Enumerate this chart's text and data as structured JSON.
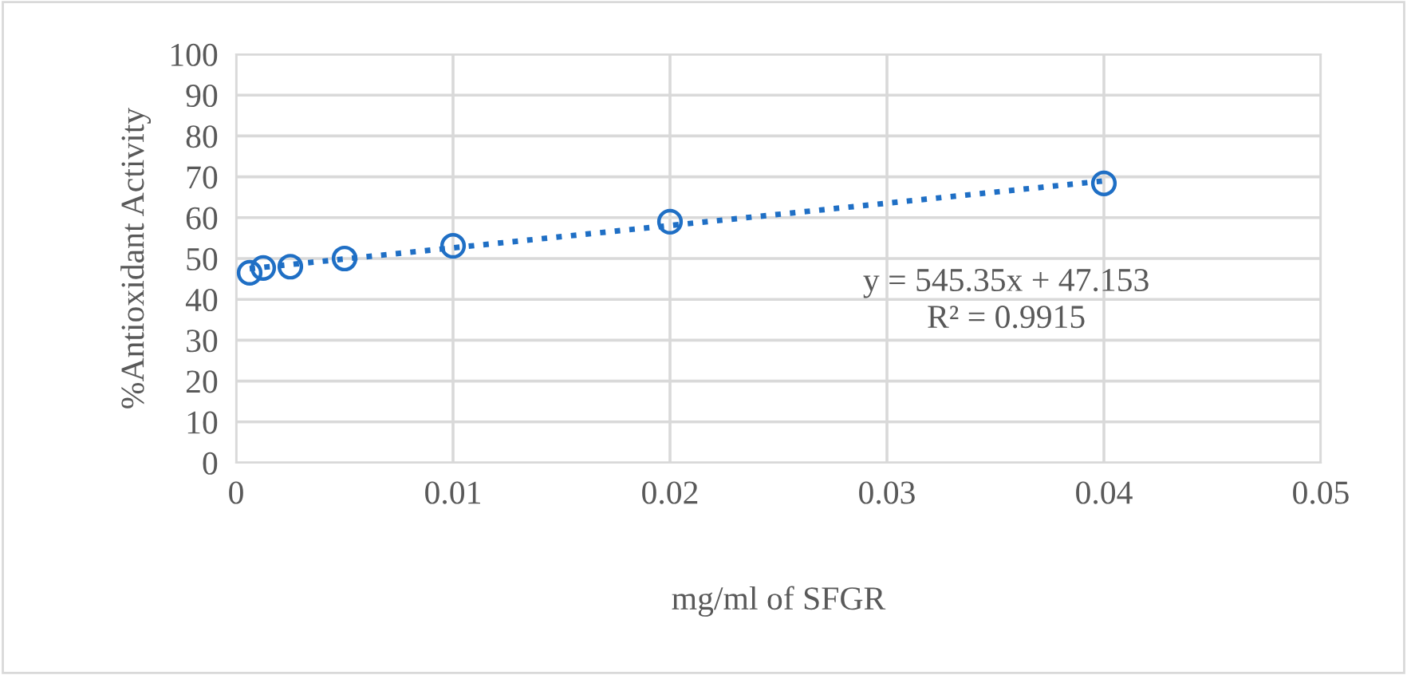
{
  "chart_data": {
    "type": "scatter",
    "xlabel": "mg/ml of SFGR",
    "ylabel": "%Antioxidant Activity",
    "series": [
      {
        "color": "#1f6fc5",
        "marker": "circle",
        "x": [
          0.000625,
          0.00125,
          0.0025,
          0.005,
          0.01,
          0.02,
          0.04
        ],
        "values": [
          46.5,
          47.7,
          48.0,
          50.0,
          53.1,
          59.0,
          68.4
        ]
      },
      {
        "type": "line",
        "color": "#1f6fc5",
        "line_style": "dotted",
        "marker": "none",
        "x": [
          0.000625,
          0.04
        ],
        "values": [
          47.5,
          69.0
        ]
      }
    ],
    "annotations": [
      "y = 545.35x + 47.153",
      "R² = 0.9915"
    ],
    "xlim": [
      0,
      0.05
    ],
    "xticks": [
      0,
      0.01,
      0.02,
      0.03,
      0.04,
      0.05
    ],
    "ylim": [
      0,
      100
    ],
    "yticks": [
      0,
      10,
      20,
      30,
      40,
      50,
      60,
      70,
      80,
      90,
      100
    ],
    "grid": true
  }
}
